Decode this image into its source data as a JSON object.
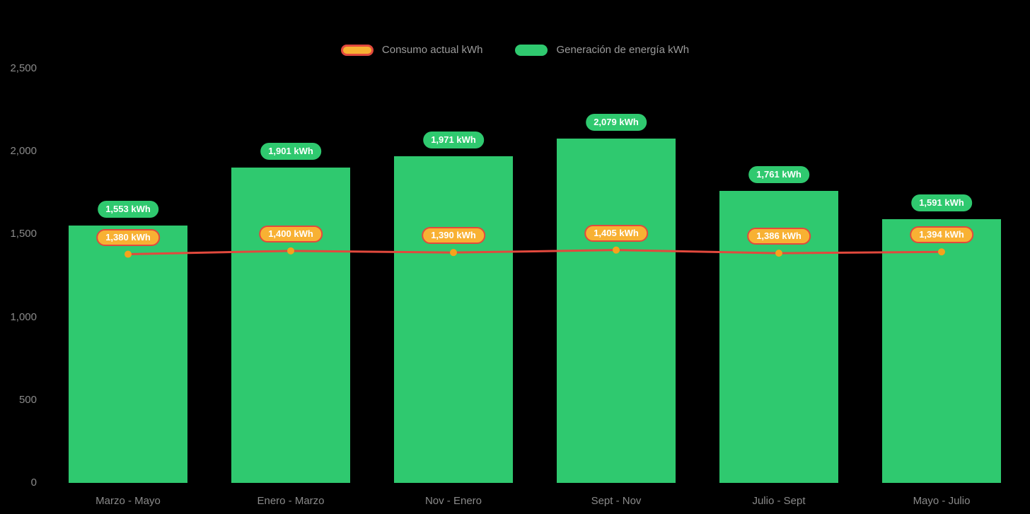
{
  "background_color": "#000000",
  "legend": {
    "items": [
      {
        "label": "Consumo actual kWh",
        "swatch_fill": "#f8b133",
        "swatch_border": "#e2493d"
      },
      {
        "label": "Generación de energía kWh",
        "swatch_fill": "#2fc96f",
        "swatch_border": "#2fc96f"
      }
    ]
  },
  "chart_data": {
    "type": "bar",
    "title": "",
    "categories": [
      "Marzo - Mayo",
      "Enero - Marzo",
      "Nov - Enero",
      "Sept - Nov",
      "Julio - Sept",
      "Mayo - Julio"
    ],
    "series": [
      {
        "name": "Generación de energía kWh",
        "type": "bar",
        "values": [
          1553,
          1901,
          1971,
          2079,
          1761,
          1591
        ],
        "labels": [
          "1,553 kWh",
          "1,901 kWh",
          "1,971 kWh",
          "2,079 kWh",
          "1,761 kWh",
          "1,591 kWh"
        ],
        "color": "#2fc96f",
        "label_bg": "#2fc96f",
        "label_text_color": "#ffffff"
      },
      {
        "name": "Consumo actual kWh",
        "type": "line",
        "values": [
          1380,
          1400,
          1390,
          1405,
          1386,
          1394
        ],
        "labels": [
          "1,380 kWh",
          "1,400 kWh",
          "1,390 kWh",
          "1,405 kWh",
          "1,386 kWh",
          "1,394 kWh"
        ],
        "color": "#e2493d",
        "point_color": "#f6a21c",
        "label_bg": "#f8b133",
        "label_text_color": "#ffffff"
      }
    ],
    "xlabel": "",
    "ylabel": "",
    "ylim": [
      0,
      2500
    ],
    "yticks": [
      {
        "value": 0,
        "label": "0"
      },
      {
        "value": 500,
        "label": "500"
      },
      {
        "value": 1000,
        "label": "1,000"
      },
      {
        "value": 1500,
        "label": "1,500"
      },
      {
        "value": 2000,
        "label": "2,000"
      },
      {
        "value": 2500,
        "label": "2,500"
      }
    ],
    "grid": false,
    "legend_position": "top"
  }
}
